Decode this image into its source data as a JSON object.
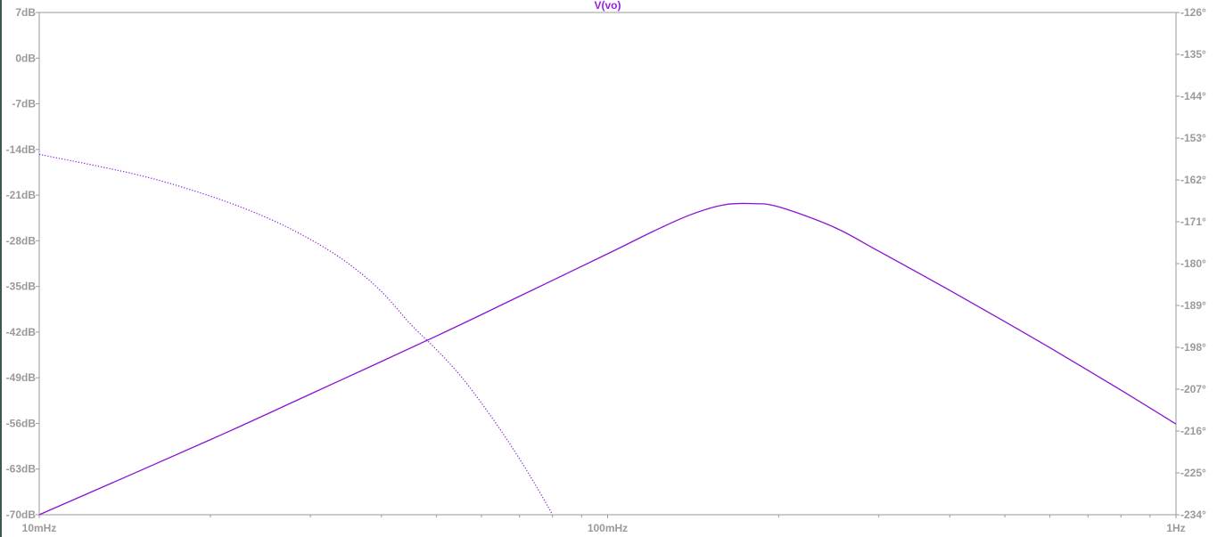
{
  "chart_data": {
    "type": "line",
    "title": "V(vo)",
    "xaxis": {
      "scale": "log",
      "range": [
        0.01,
        1
      ],
      "tick_labels": [
        "10mHz",
        "100mHz",
        "1Hz"
      ]
    },
    "yaxis_left": {
      "unit": "dB",
      "range": [
        -70,
        7
      ],
      "ticks": [
        7,
        0,
        -7,
        -14,
        -21,
        -28,
        -35,
        -42,
        -49,
        -56,
        -63,
        -70
      ],
      "tick_labels": [
        "7dB",
        "0dB",
        "-7dB",
        "-14dB",
        "-21dB",
        "-28dB",
        "-35dB",
        "-42dB",
        "-49dB",
        "-56dB",
        "-63dB",
        "-70dB"
      ]
    },
    "yaxis_right": {
      "unit": "deg",
      "range": [
        -234,
        -126
      ],
      "ticks": [
        -126,
        -135,
        -144,
        -153,
        -162,
        -171,
        -180,
        -189,
        -198,
        -207,
        -216,
        -225,
        -234
      ],
      "tick_labels": [
        "-126°",
        "-135°",
        "-144°",
        "-153°",
        "-162°",
        "-171°",
        "-180°",
        "-189°",
        "-198°",
        "-207°",
        "-216°",
        "-225°",
        "-234°"
      ]
    },
    "grid": false,
    "series": [
      {
        "name": "V(vo)",
        "kind": "magnitude",
        "axis": "left",
        "style": "solid",
        "color": "#8a14d6",
        "x": [
          0.01,
          0.02,
          0.03,
          0.05,
          0.07,
          0.1,
          0.12,
          0.14,
          0.16,
          0.18,
          0.2,
          0.25,
          0.3,
          0.4,
          0.5,
          0.6,
          0.8,
          1.0
        ],
        "y": [
          -70,
          -58.5,
          -51.5,
          -42.6,
          -36.5,
          -30.0,
          -26.6,
          -24.0,
          -22.5,
          -22.3,
          -22.8,
          -25.9,
          -29.6,
          -35.6,
          -40.4,
          -44.4,
          -50.9,
          -56.1
        ]
      },
      {
        "name": "V(vo)",
        "kind": "phase",
        "axis": "right",
        "style": "dotted",
        "color": "#8a14d6",
        "x": [
          0.01,
          0.015,
          0.02,
          0.025,
          0.03,
          0.035,
          0.04,
          0.045,
          0.05,
          0.055,
          0.06,
          0.065,
          0.07,
          0.075,
          0.08
        ],
        "y": [
          -156.5,
          -161.0,
          -165.5,
          -170.0,
          -174.8,
          -180.0,
          -186.0,
          -193.0,
          -198.5,
          -204.0,
          -210.0,
          -216.0,
          -222.0,
          -228.0,
          -234.0
        ]
      }
    ]
  },
  "colors": {
    "axis": "#9a9a9a",
    "trace": "#8a14d6",
    "title": "#9a1fe0",
    "left_border": "#3a5a4a"
  }
}
